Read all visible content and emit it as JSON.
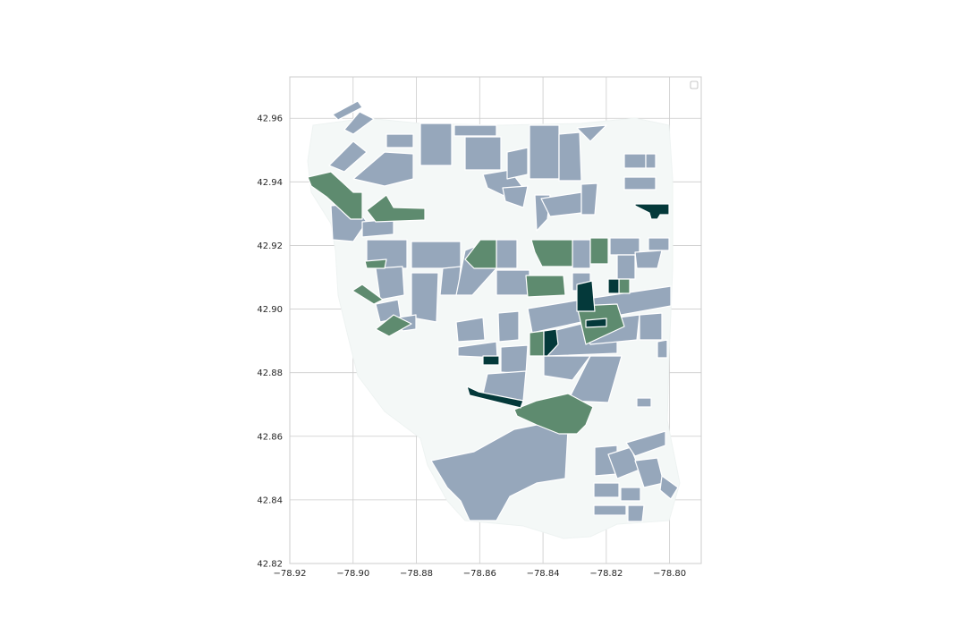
{
  "chart_data": {
    "type": "choropleth map",
    "xlim": [
      -78.92,
      -78.79
    ],
    "ylim": [
      42.82,
      42.973
    ],
    "x_ticks": [
      -78.92,
      -78.9,
      -78.88,
      -78.86,
      -78.84,
      -78.82,
      -78.8
    ],
    "y_ticks": [
      42.82,
      42.84,
      42.86,
      42.88,
      42.9,
      42.92,
      42.94,
      42.96
    ],
    "x_tick_labels": [
      "−78.92",
      "−78.90",
      "−78.88",
      "−78.86",
      "−78.84",
      "−78.82",
      "−78.80"
    ],
    "y_tick_labels": [
      "42.82",
      "42.84",
      "42.86",
      "42.88",
      "42.90",
      "42.92",
      "42.94",
      "42.96"
    ],
    "grid": true,
    "legend": "top-right (empty)",
    "colors": {
      "background": "#f4f8f7",
      "low": "#96a7bb",
      "medium": "#5e8b6f",
      "high": "#04393a",
      "grid": "#cccccc"
    }
  }
}
